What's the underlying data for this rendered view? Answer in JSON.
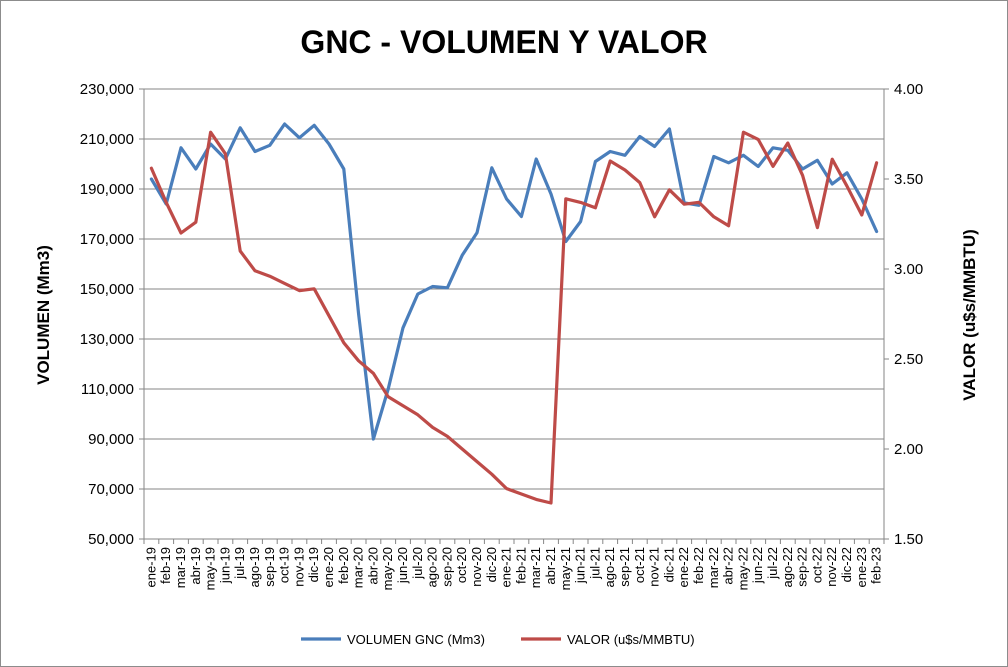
{
  "chart_data": {
    "type": "line",
    "title": "GNC - VOLUMEN Y VALOR",
    "ylabel": "VOLUMEN (Mm3)",
    "y2label": "VALOR (u$s/MMBTU)",
    "ylim": [
      50000,
      230000
    ],
    "y2lim": [
      1.5,
      4.0
    ],
    "yticks": [
      "50,000",
      "70,000",
      "90,000",
      "110,000",
      "130,000",
      "150,000",
      "170,000",
      "190,000",
      "210,000",
      "230,000"
    ],
    "y2ticks": [
      "1.50",
      "2.00",
      "2.50",
      "3.00",
      "3.50",
      "4.00"
    ],
    "grid": true,
    "legend_position": "bottom",
    "categories": [
      "ene-19",
      "feb-19",
      "mar-19",
      "abr-19",
      "may-19",
      "jun-19",
      "jul-19",
      "ago-19",
      "sep-19",
      "oct-19",
      "nov-19",
      "dic-19",
      "ene-20",
      "feb-20",
      "mar-20",
      "abr-20",
      "may-20",
      "jun-20",
      "jul-20",
      "ago-20",
      "sep-20",
      "oct-20",
      "nov-20",
      "dic-20",
      "ene-21",
      "feb-21",
      "mar-21",
      "abr-21",
      "may-21",
      "jun-21",
      "jul-21",
      "ago-21",
      "sep-21",
      "oct-21",
      "nov-21",
      "dic-21",
      "ene-22",
      "feb-22",
      "mar-22",
      "abr-22",
      "may-22",
      "jun-22",
      "jul-22",
      "ago-22",
      "sep-22",
      "oct-22",
      "nov-22",
      "dic-22",
      "ene-23",
      "feb-23"
    ],
    "series": [
      {
        "name": "VOLUMEN GNC (Mm3)",
        "axis": "left",
        "color": "#4a7ebb",
        "values": [
          194000,
          184000,
          206500,
          198000,
          208000,
          202000,
          214500,
          205000,
          207500,
          216000,
          210500,
          215500,
          208000,
          198000,
          140000,
          90000,
          110000,
          134500,
          148000,
          151000,
          150500,
          163500,
          172500,
          198500,
          186000,
          179000,
          202000,
          188000,
          169000,
          177000,
          201000,
          205000,
          203500,
          211000,
          207000,
          214000,
          184500,
          183500,
          203000,
          200500,
          203500,
          199000,
          206500,
          205500,
          198000,
          201500,
          192000,
          196500,
          186000,
          173000
        ]
      },
      {
        "name": "VALOR (u$s/MMBTU)",
        "axis": "right",
        "color": "#be4b48",
        "values": [
          3.56,
          3.37,
          3.2,
          3.26,
          3.76,
          3.64,
          3.1,
          2.99,
          2.96,
          2.92,
          2.88,
          2.89,
          2.74,
          2.59,
          2.49,
          2.42,
          2.29,
          2.24,
          2.19,
          2.12,
          2.07,
          2.0,
          1.93,
          1.86,
          1.78,
          1.75,
          1.72,
          1.7,
          3.39,
          3.37,
          3.34,
          3.6,
          3.55,
          3.48,
          3.29,
          3.44,
          3.36,
          3.37,
          3.29,
          3.24,
          3.76,
          3.72,
          3.57,
          3.7,
          3.52,
          3.23,
          3.61,
          3.46,
          3.3,
          3.59
        ]
      }
    ]
  }
}
